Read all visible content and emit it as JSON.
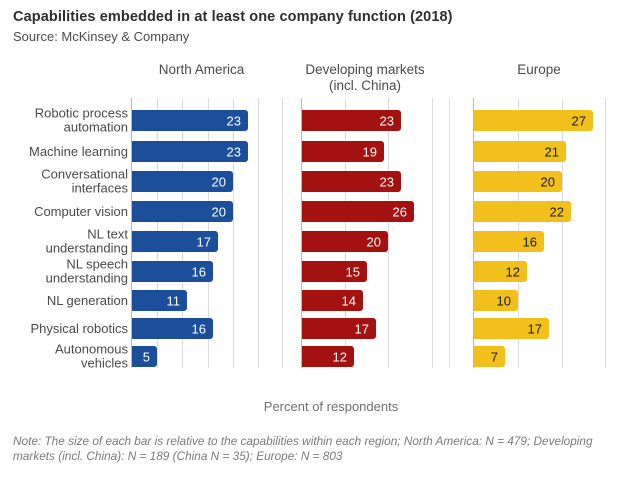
{
  "title": "Capabilities embedded in at least one company function (2018)",
  "source": "Source: McKinsey & Company",
  "xlabel": "Percent of respondents",
  "note": "Note: The size of each bar is relative to the capabilities within each region; North America: N = 479; Developing markets (incl. China): N = 189 (China N = 35); Europe: N = 803",
  "chart_data": {
    "type": "bar",
    "orientation": "horizontal",
    "title": "Capabilities embedded in at least one company function (2018)",
    "subtitle": "Source: McKinsey & Company",
    "xlabel": "Percent of respondents",
    "grid": true,
    "legend": false,
    "unit": "percent of respondents",
    "categories": [
      "Robotic process automation",
      "Machine learning",
      "Conversational interfaces",
      "Computer vision",
      "NL text understanding",
      "NL speech understanding",
      "NL generation",
      "Physical robotics",
      "Autonomous vehicles"
    ],
    "series": [
      {
        "name": "North America",
        "header": "North America",
        "values": [
          23,
          23,
          20,
          20,
          17,
          16,
          11,
          16,
          5
        ],
        "color": "#1B4F9C",
        "label_color": "#ffffff",
        "xmax": 30,
        "gridlines": [
          5,
          10,
          15,
          20,
          25,
          30
        ]
      },
      {
        "name": "Developing markets (incl. China)",
        "header": "Developing markets\n(incl. China)",
        "values": [
          23,
          19,
          23,
          26,
          20,
          15,
          14,
          17,
          12
        ],
        "color": "#A31111",
        "label_color": "#ffffff",
        "xmax": 34,
        "gridlines": [
          10,
          20,
          30
        ]
      },
      {
        "name": "Europe",
        "header": "Europe",
        "values": [
          27,
          21,
          20,
          22,
          16,
          12,
          10,
          17,
          7
        ],
        "color": "#F2C01D",
        "label_color": "#1b1b1b",
        "xmax": 30,
        "gridlines": [
          10,
          20,
          30
        ]
      }
    ]
  }
}
